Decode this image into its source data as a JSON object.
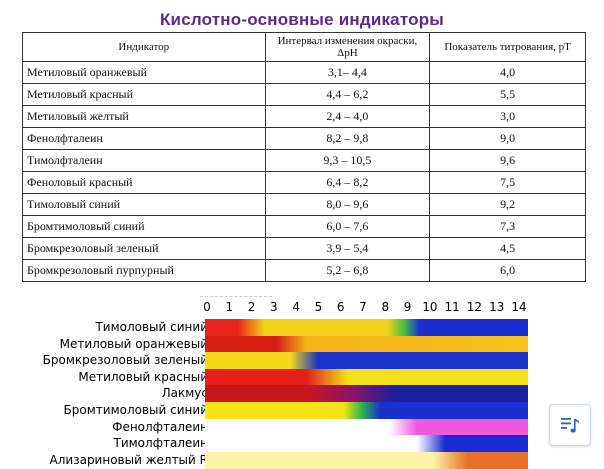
{
  "title": "Кислотно-основные индикаторы",
  "table": {
    "headers": [
      "Индикатор",
      "Интервал изменения окраски, ΔpH",
      "Показатель титрования, pT"
    ],
    "rows": [
      [
        "Метиловый оранжевый",
        "3,1– 4,4",
        "4,0"
      ],
      [
        "Метиловый красный",
        "4,4 – 6,2",
        "5,5"
      ],
      [
        "Метиловый желтый",
        "2,4 – 4,0",
        "3,0"
      ],
      [
        "Фенолфталеин",
        "8,2 – 9,8",
        "9,0"
      ],
      [
        "Тимолфталеин",
        "9,3 – 10,5",
        "9,6"
      ],
      [
        "Феноловый красный",
        "6,4 – 8,2",
        "7,5"
      ],
      [
        "Тимоловый синий",
        "8,0 – 9,6",
        "9,2"
      ],
      [
        "Бромтимоловый синий",
        "6,0 – 7,6",
        "7,3"
      ],
      [
        "Бромкрезоловый зеленый",
        "3,9 – 5,4",
        "4,5"
      ],
      [
        "Бромкрезоловый пурпурный",
        "5,2 – 6,8",
        "6,0"
      ]
    ]
  },
  "scale": {
    "ticks": [
      "0",
      "1",
      "2",
      "3",
      "4",
      "5",
      "6",
      "7",
      "8",
      "9",
      "10",
      "11",
      "12",
      "13",
      "14"
    ],
    "indicators": [
      {
        "name": "Тимоловый синий",
        "stops": [
          [
            0,
            "#e8231a"
          ],
          [
            1.4,
            "#e8231a"
          ],
          [
            2.6,
            "#f5d31a"
          ],
          [
            7.9,
            "#f5d31a"
          ],
          [
            8.6,
            "#49c23a"
          ],
          [
            9.3,
            "#1a2ccf"
          ],
          [
            14,
            "#1a2ccf"
          ]
        ]
      },
      {
        "name": "Метиловый оранжевый",
        "stops": [
          [
            0,
            "#d81d16"
          ],
          [
            3.1,
            "#d81d16"
          ],
          [
            4.4,
            "#f5b21a"
          ],
          [
            14,
            "#f5c11a"
          ]
        ]
      },
      {
        "name": "Бромкрезоловый зеленый",
        "stops": [
          [
            0,
            "#f5d81a"
          ],
          [
            3.7,
            "#f5d81a"
          ],
          [
            4.9,
            "#1a32c8"
          ],
          [
            14,
            "#1a32c8"
          ]
        ]
      },
      {
        "name": "Метиловый красный",
        "stops": [
          [
            0,
            "#e2201a"
          ],
          [
            4.4,
            "#e2201a"
          ],
          [
            6.2,
            "#f5e11a"
          ],
          [
            14,
            "#f5e11a"
          ]
        ]
      },
      {
        "name": "Лакмус",
        "stops": [
          [
            0,
            "#c8161e"
          ],
          [
            4.5,
            "#c8161e"
          ],
          [
            6.4,
            "#8a1468"
          ],
          [
            8.2,
            "#1a1f9e"
          ],
          [
            14,
            "#1a1f9e"
          ]
        ]
      },
      {
        "name": "Бромтимоловый синий",
        "stops": [
          [
            0,
            "#f5e31a"
          ],
          [
            6.0,
            "#f5e31a"
          ],
          [
            6.8,
            "#2fb64a"
          ],
          [
            7.6,
            "#1a2fd0"
          ],
          [
            14,
            "#1a2fd0"
          ]
        ]
      },
      {
        "name": "Фенолфталеин",
        "stops": [
          [
            0,
            "#ffffff"
          ],
          [
            8.0,
            "#ffffff"
          ],
          [
            9.2,
            "#f058e0"
          ],
          [
            14,
            "#f058e0"
          ]
        ]
      },
      {
        "name": "Тимолфталеин",
        "stops": [
          [
            0,
            "#ffffff"
          ],
          [
            9.2,
            "#ffffff"
          ],
          [
            10.4,
            "#1a2cd2"
          ],
          [
            14,
            "#1a2cd2"
          ]
        ]
      },
      {
        "name": "Ализариновый желтый R",
        "stops": [
          [
            0,
            "#fbf3a6"
          ],
          [
            9.9,
            "#fbf3a6"
          ],
          [
            11.4,
            "#e6702a"
          ],
          [
            14,
            "#e6702a"
          ]
        ]
      }
    ]
  },
  "icons": {
    "music": "music-list-icon"
  },
  "colors": {
    "title": "#5b2a8a",
    "music_icon": "#2a63c8"
  }
}
